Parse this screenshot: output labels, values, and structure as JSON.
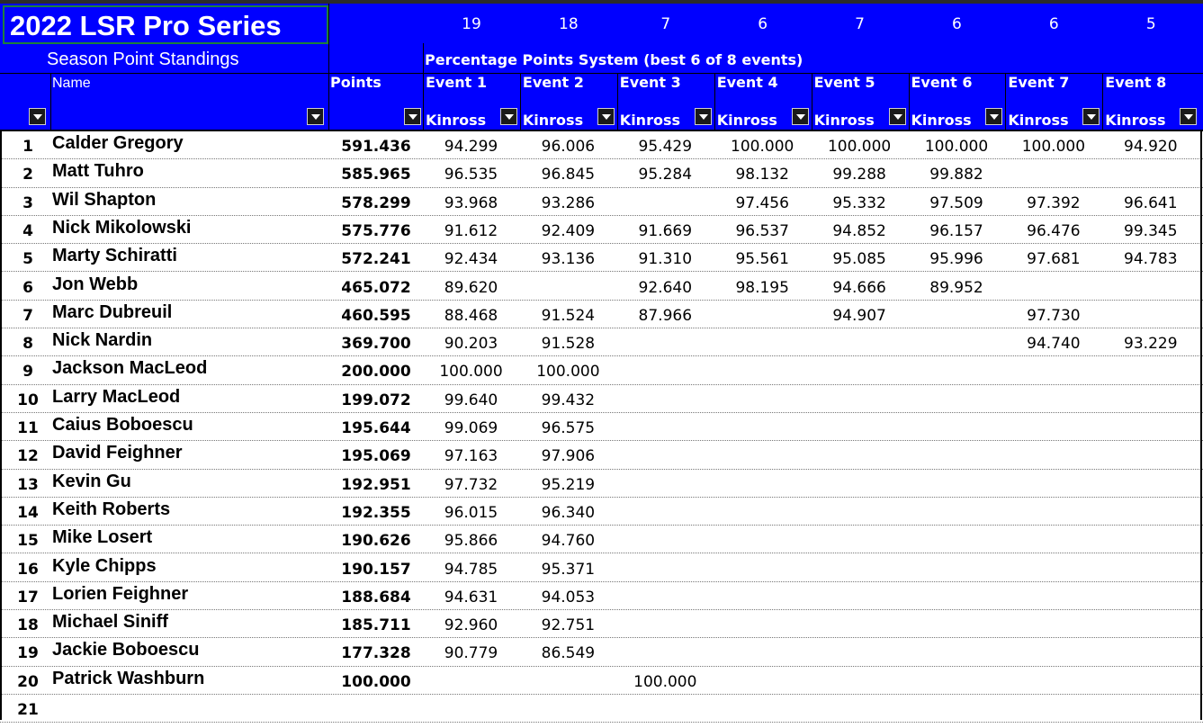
{
  "title": "2022 LSR Pro Series",
  "event_counts": [
    "19",
    "18",
    "7",
    "6",
    "7",
    "6",
    "6",
    "5"
  ],
  "subtitle": "Season Point Standings",
  "points_system": "Percentage Points System (best 6 of 8 events)",
  "headers": {
    "name": "Name",
    "points": "Points"
  },
  "events": [
    {
      "label": "Event 1",
      "venue": "Kinross"
    },
    {
      "label": "Event 2",
      "venue": "Kinross"
    },
    {
      "label": "Event 3",
      "venue": "Kinross"
    },
    {
      "label": "Event 4",
      "venue": "Kinross"
    },
    {
      "label": "Event 5",
      "venue": "Kinross"
    },
    {
      "label": "Event 6",
      "venue": "Kinross"
    },
    {
      "label": "Event 7",
      "venue": "Kinross"
    },
    {
      "label": "Event 8",
      "venue": "Kinross"
    }
  ],
  "colors": {
    "header_bg": "#0000ff",
    "header_text": "#ffffff",
    "selection": "#1e7f3c"
  },
  "icons": {
    "filter": "dropdown-arrow-icon"
  },
  "rows": [
    {
      "rank": "1",
      "name": "Calder Gregory",
      "points": "591.436",
      "scores": [
        "94.299",
        "96.006",
        "95.429",
        "100.000",
        "100.000",
        "100.000",
        "100.000",
        "94.920"
      ]
    },
    {
      "rank": "2",
      "name": "Matt Tuhro",
      "points": "585.965",
      "scores": [
        "96.535",
        "96.845",
        "95.284",
        "98.132",
        "99.288",
        "99.882",
        "",
        ""
      ]
    },
    {
      "rank": "3",
      "name": "Wil Shapton",
      "points": "578.299",
      "scores": [
        "93.968",
        "93.286",
        "",
        "97.456",
        "95.332",
        "97.509",
        "97.392",
        "96.641"
      ]
    },
    {
      "rank": "4",
      "name": "Nick Mikolowski",
      "points": "575.776",
      "scores": [
        "91.612",
        "92.409",
        "91.669",
        "96.537",
        "94.852",
        "96.157",
        "96.476",
        "99.345"
      ]
    },
    {
      "rank": "5",
      "name": "Marty Schiratti",
      "points": "572.241",
      "scores": [
        "92.434",
        "93.136",
        "91.310",
        "95.561",
        "95.085",
        "95.996",
        "97.681",
        "94.783"
      ]
    },
    {
      "rank": "6",
      "name": "Jon Webb",
      "points": "465.072",
      "scores": [
        "89.620",
        "",
        "92.640",
        "98.195",
        "94.666",
        "89.952",
        "",
        ""
      ]
    },
    {
      "rank": "7",
      "name": "Marc Dubreuil",
      "points": "460.595",
      "scores": [
        "88.468",
        "91.524",
        "87.966",
        "",
        "94.907",
        "",
        "97.730",
        ""
      ]
    },
    {
      "rank": "8",
      "name": "Nick Nardin",
      "points": "369.700",
      "scores": [
        "90.203",
        "91.528",
        "",
        "",
        "",
        "",
        "94.740",
        "93.229"
      ]
    },
    {
      "rank": "9",
      "name": "Jackson MacLeod",
      "points": "200.000",
      "scores": [
        "100.000",
        "100.000",
        "",
        "",
        "",
        "",
        "",
        ""
      ]
    },
    {
      "rank": "10",
      "name": "Larry MacLeod",
      "points": "199.072",
      "scores": [
        "99.640",
        "99.432",
        "",
        "",
        "",
        "",
        "",
        ""
      ]
    },
    {
      "rank": "11",
      "name": "Caius Boboescu",
      "points": "195.644",
      "scores": [
        "99.069",
        "96.575",
        "",
        "",
        "",
        "",
        "",
        ""
      ]
    },
    {
      "rank": "12",
      "name": "David Feighner",
      "points": "195.069",
      "scores": [
        "97.163",
        "97.906",
        "",
        "",
        "",
        "",
        "",
        ""
      ]
    },
    {
      "rank": "13",
      "name": "Kevin Gu",
      "points": "192.951",
      "scores": [
        "97.732",
        "95.219",
        "",
        "",
        "",
        "",
        "",
        ""
      ]
    },
    {
      "rank": "14",
      "name": "Keith Roberts",
      "points": "192.355",
      "scores": [
        "96.015",
        "96.340",
        "",
        "",
        "",
        "",
        "",
        ""
      ]
    },
    {
      "rank": "15",
      "name": "Mike Losert",
      "points": "190.626",
      "scores": [
        "95.866",
        "94.760",
        "",
        "",
        "",
        "",
        "",
        ""
      ]
    },
    {
      "rank": "16",
      "name": "Kyle Chipps",
      "points": "190.157",
      "scores": [
        "94.785",
        "95.371",
        "",
        "",
        "",
        "",
        "",
        ""
      ]
    },
    {
      "rank": "17",
      "name": "Lorien Feighner",
      "points": "188.684",
      "scores": [
        "94.631",
        "94.053",
        "",
        "",
        "",
        "",
        "",
        ""
      ]
    },
    {
      "rank": "18",
      "name": "Michael Siniff",
      "points": "185.711",
      "scores": [
        "92.960",
        "92.751",
        "",
        "",
        "",
        "",
        "",
        ""
      ]
    },
    {
      "rank": "19",
      "name": "Jackie Boboescu",
      "points": "177.328",
      "scores": [
        "90.779",
        "86.549",
        "",
        "",
        "",
        "",
        "",
        ""
      ]
    },
    {
      "rank": "20",
      "name": "Patrick Washburn",
      "points": "100.000",
      "scores": [
        "",
        "",
        "100.000",
        "",
        "",
        "",
        "",
        ""
      ]
    },
    {
      "rank": "21",
      "name": "",
      "points": "",
      "scores": [
        "",
        "",
        "",
        "",
        "",
        "",
        "",
        ""
      ]
    }
  ]
}
